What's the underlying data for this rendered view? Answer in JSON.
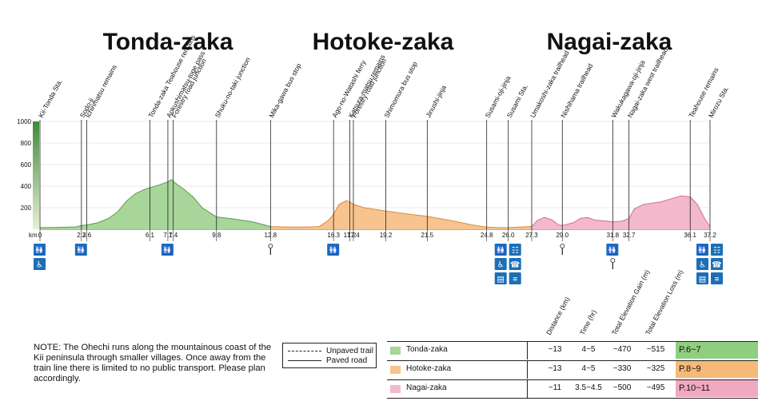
{
  "sections": [
    {
      "name": "Tonda-zaka",
      "color": "#a8d59a",
      "stroke": "#5a9d4e",
      "start_km": 0,
      "end_km": 12.8
    },
    {
      "name": "Hotoke-zaka",
      "color": "#f7c38e",
      "stroke": "#d88d3f",
      "start_km": 12.8,
      "end_km": 27.3
    },
    {
      "name": "Nagai-zaka",
      "color": "#f3b8cb",
      "stroke": "#cf6f93",
      "start_km": 27.3,
      "end_km": 37.2
    }
  ],
  "chart_data": {
    "type": "area",
    "x_unit": "km",
    "ylim": [
      0,
      1000
    ],
    "yticks": [
      200,
      400,
      600,
      800,
      1000
    ],
    "xlim": [
      0,
      37.2
    ],
    "profile": [
      [
        0,
        15
      ],
      [
        1.0,
        18
      ],
      [
        2.0,
        22
      ],
      [
        2.3,
        35
      ],
      [
        2.6,
        40
      ],
      [
        3.2,
        60
      ],
      [
        3.8,
        100
      ],
      [
        4.3,
        160
      ],
      [
        4.8,
        260
      ],
      [
        5.3,
        330
      ],
      [
        5.8,
        370
      ],
      [
        6.1,
        385
      ],
      [
        6.6,
        410
      ],
      [
        7.1,
        440
      ],
      [
        7.3,
        460
      ],
      [
        7.5,
        430
      ],
      [
        8.0,
        370
      ],
      [
        8.5,
        300
      ],
      [
        9.0,
        200
      ],
      [
        9.8,
        115
      ],
      [
        10.8,
        95
      ],
      [
        11.8,
        70
      ],
      [
        12.8,
        25
      ],
      [
        13.8,
        20
      ],
      [
        14.8,
        20
      ],
      [
        15.5,
        25
      ],
      [
        16.0,
        80
      ],
      [
        16.3,
        140
      ],
      [
        16.6,
        230
      ],
      [
        17.0,
        265
      ],
      [
        17.2,
        255
      ],
      [
        17.4,
        230
      ],
      [
        18.0,
        200
      ],
      [
        19.2,
        170
      ],
      [
        20.5,
        140
      ],
      [
        21.5,
        120
      ],
      [
        23.0,
        75
      ],
      [
        24.0,
        40
      ],
      [
        24.8,
        20
      ],
      [
        25.5,
        15
      ],
      [
        26.0,
        15
      ],
      [
        26.6,
        20
      ],
      [
        27.3,
        25
      ],
      [
        27.6,
        80
      ],
      [
        28.0,
        110
      ],
      [
        28.4,
        90
      ],
      [
        28.8,
        40
      ],
      [
        29.0,
        35
      ],
      [
        29.6,
        60
      ],
      [
        30.0,
        100
      ],
      [
        30.4,
        110
      ],
      [
        30.8,
        85
      ],
      [
        31.2,
        80
      ],
      [
        31.8,
        70
      ],
      [
        32.3,
        75
      ],
      [
        32.7,
        100
      ],
      [
        33.0,
        190
      ],
      [
        33.5,
        230
      ],
      [
        34.5,
        255
      ],
      [
        35.2,
        290
      ],
      [
        35.6,
        310
      ],
      [
        36.1,
        300
      ],
      [
        36.5,
        230
      ],
      [
        36.9,
        100
      ],
      [
        37.2,
        25
      ]
    ],
    "waypoints": [
      {
        "km": 0,
        "label": "Kii-Tonda Sta."
      },
      {
        "km": 2.3,
        "label": "Sodo-ji"
      },
      {
        "km": 2.6,
        "label": "Ichirimatsu remains"
      },
      {
        "km": 6.1,
        "label": "Tonda-zaka Teahouse remains"
      },
      {
        "km": 7.1,
        "label": "Aokushimatsu-toge pass"
      },
      {
        "km": 7.4,
        "label": "Forestry road junction"
      },
      {
        "km": 9.8,
        "label": "Shuku-no-taki junction"
      },
      {
        "km": 12.8,
        "label": "Mika-gawa bus stop"
      },
      {
        "km": 16.3,
        "label": "Ago-no-Watashi ferry"
      },
      {
        "km": 17.2,
        "label": "Katsura-matsu remains"
      },
      {
        "km": 17.4,
        "label": "Forestry road junction"
      },
      {
        "km": 19.2,
        "label": "Shimomura bus stop"
      },
      {
        "km": 21.5,
        "label": "Jinushi-jinja"
      },
      {
        "km": 24.8,
        "label": "Susami-oji-jinja"
      },
      {
        "km": 26.0,
        "label": "Susami Sta."
      },
      {
        "km": 27.3,
        "label": "Umakoshi-zaka trailhead"
      },
      {
        "km": 29.0,
        "label": "Nishihama trailhead"
      },
      {
        "km": 31.8,
        "label": "Wakukagawa-oji-jinja"
      },
      {
        "km": 32.7,
        "label": "Nagai-zaka west trailhead"
      },
      {
        "km": 36.1,
        "label": "Teahouse remains"
      },
      {
        "km": 37.2,
        "label": "Mirozu Sta."
      }
    ],
    "km_axis_label": "km",
    "km_ticks": [
      {
        "km": 0,
        "label": "0"
      },
      {
        "km": 2.3,
        "label": "2.3"
      },
      {
        "km": 2.6,
        "label": "2.6"
      },
      {
        "km": 6.1,
        "label": "6.1"
      },
      {
        "km": 7.1,
        "label": "7.1"
      },
      {
        "km": 7.4,
        "label": "7.4"
      },
      {
        "km": 9.8,
        "label": "9.8"
      },
      {
        "km": 12.8,
        "label": "12.8"
      },
      {
        "km": 16.3,
        "label": "16.3"
      },
      {
        "km": 17.2,
        "label": "17.2"
      },
      {
        "km": 17.4,
        "label": "17.4"
      },
      {
        "km": 19.2,
        "label": "19.2"
      },
      {
        "km": 21.5,
        "label": "21.5"
      },
      {
        "km": 24.8,
        "label": "24.8"
      },
      {
        "km": 26.0,
        "label": "26.0"
      },
      {
        "km": 27.3,
        "label": "27.3"
      },
      {
        "km": 29.0,
        "label": "29.0"
      },
      {
        "km": 31.8,
        "label": "31.8"
      },
      {
        "km": 32.7,
        "label": "32.7"
      },
      {
        "km": 36.1,
        "label": "36.1"
      },
      {
        "km": 37.2,
        "label": "37.2"
      }
    ],
    "facilities": [
      {
        "km": 0,
        "icons": [
          "toilet-icon",
          "person-icon"
        ]
      },
      {
        "km": 2.3,
        "icons": [
          "toilet-icon"
        ]
      },
      {
        "km": 7.1,
        "icons": [
          "toilet-icon"
        ]
      },
      {
        "km": 12.8,
        "icons": [
          "bus-stop-icon"
        ]
      },
      {
        "km": 16.3,
        "icons": [
          "toilet-icon"
        ]
      },
      {
        "km": 26.0,
        "icons": [
          "toilet-icon",
          "vending-icon",
          "person-icon",
          "phone-icon",
          "shop-icon",
          "bed-icon"
        ]
      },
      {
        "km": 29.0,
        "icons": [
          "bus-stop-icon"
        ]
      },
      {
        "km": 31.8,
        "icons": [
          "toilet-icon",
          "bus-stop-icon"
        ]
      },
      {
        "km": 37.2,
        "icons": [
          "toilet-icon",
          "vending-icon",
          "person-icon",
          "phone-icon",
          "shop-icon",
          "bed-icon"
        ]
      }
    ]
  },
  "note": "NOTE: The Ohechi runs along the mountainous coast of the Kii peninsula through smaller villages.  Once away from the train line there is limited to no public transport.  Please plan accordingly.",
  "legend": {
    "unpaved": "Unpaved trail",
    "paved": "Paved road"
  },
  "table": {
    "headers": [
      "Distance (km)",
      "Time (hr)",
      "Total Elevation Gain (m)",
      "Total Elevation Loss (m)"
    ],
    "rows": [
      {
        "name": "Tonda-zaka",
        "distance": "~13",
        "time": "4~5",
        "gain": "~470",
        "loss": "~515",
        "pages": "P.6~7",
        "page_color": "#8fcf7f",
        "swatch": "#a8d59a"
      },
      {
        "name": "Hotoke-zaka",
        "distance": "~13",
        "time": "4~5",
        "gain": "~330",
        "loss": "~325",
        "pages": "P.8~9",
        "page_color": "#f6b978",
        "swatch": "#f7c38e"
      },
      {
        "name": "Nagai-zaka",
        "distance": "~11",
        "time": "3.5~4.5",
        "gain": "~500",
        "loss": "~495",
        "pages": "P.10~11",
        "page_color": "#f0a9c1",
        "swatch": "#f3b8cb"
      }
    ]
  }
}
